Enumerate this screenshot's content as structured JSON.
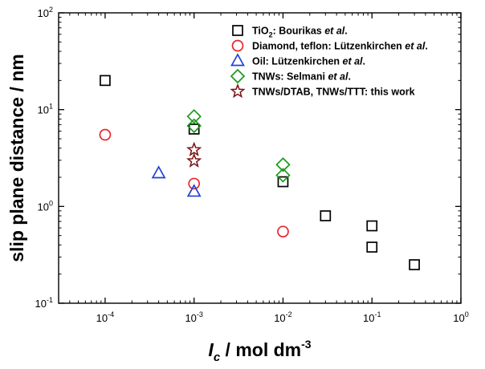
{
  "chart_data": {
    "type": "scatter",
    "xscale": "log",
    "yscale": "log",
    "xlim": [
      3e-05,
      1
    ],
    "ylim": [
      0.1,
      100
    ],
    "x_ticks": [
      {
        "value": 0.0001,
        "base": "10",
        "exp": "-4"
      },
      {
        "value": 0.001,
        "base": "10",
        "exp": "-3"
      },
      {
        "value": 0.01,
        "base": "10",
        "exp": "-2"
      },
      {
        "value": 0.1,
        "base": "10",
        "exp": "-1"
      },
      {
        "value": 1,
        "base": "10",
        "exp": "0"
      }
    ],
    "y_ticks": [
      {
        "value": 0.1,
        "base": "10",
        "exp": "-1"
      },
      {
        "value": 1,
        "base": "10",
        "exp": "0"
      },
      {
        "value": 10,
        "base": "10",
        "exp": "1"
      },
      {
        "value": 100,
        "base": "10",
        "exp": "2"
      }
    ],
    "ylabel": "slip plane distance / nm",
    "xlabel": {
      "var": "I",
      "sub": "c",
      "unit": " / mol dm",
      "unit_exp": "-3"
    },
    "legend_position": "top-right",
    "series": [
      {
        "name": "TiO2: Bourikas et al.",
        "label_parts": [
          {
            "t": "TiO"
          },
          {
            "t": "2",
            "sub": true
          },
          {
            "t": ": Bourikas "
          },
          {
            "t": "et al",
            "italic": true
          },
          {
            "t": "."
          }
        ],
        "marker": "square",
        "color": "#000000",
        "points": [
          [
            0.0001,
            20
          ],
          [
            0.001,
            6.3
          ],
          [
            0.01,
            1.8
          ],
          [
            0.03,
            0.8
          ],
          [
            0.1,
            0.63
          ],
          [
            0.1,
            0.38
          ],
          [
            0.3,
            0.25
          ]
        ]
      },
      {
        "name": "Diamond, teflon: Lützenkirchen et al.",
        "label_parts": [
          {
            "t": "Diamond, teflon: Lützenkirchen "
          },
          {
            "t": "et al",
            "italic": true
          },
          {
            "t": "."
          }
        ],
        "marker": "circle",
        "color": "#e8262c",
        "points": [
          [
            0.0001,
            5.5
          ],
          [
            0.001,
            1.72
          ],
          [
            0.01,
            0.55
          ]
        ]
      },
      {
        "name": "Oil: Lützenkirchen et al.",
        "label_parts": [
          {
            "t": "Oil: Lützenkirchen "
          },
          {
            "t": "et al",
            "italic": true
          },
          {
            "t": "."
          }
        ],
        "marker": "triangle",
        "color": "#1f3fd8",
        "points": [
          [
            0.0004,
            2.2
          ],
          [
            0.001,
            1.42
          ]
        ]
      },
      {
        "name": "TNWs: Selmani et al.",
        "label_parts": [
          {
            "t": "TNWs: Selmani "
          },
          {
            "t": "et al",
            "italic": true
          },
          {
            "t": "."
          }
        ],
        "marker": "diamond",
        "color": "#1a9a1a",
        "points": [
          [
            0.001,
            8.5
          ],
          [
            0.001,
            6.8
          ],
          [
            0.01,
            2.7
          ],
          [
            0.01,
            2.1
          ]
        ]
      },
      {
        "name": "TNWs/DTAB, TNWs/TTT: this work",
        "label_parts": [
          {
            "t": "TNWs/DTAB, TNWs/TTT: this work"
          }
        ],
        "marker": "star",
        "color": "#7a1010",
        "points": [
          [
            0.001,
            3.85
          ],
          [
            0.001,
            2.95
          ]
        ]
      }
    ]
  }
}
